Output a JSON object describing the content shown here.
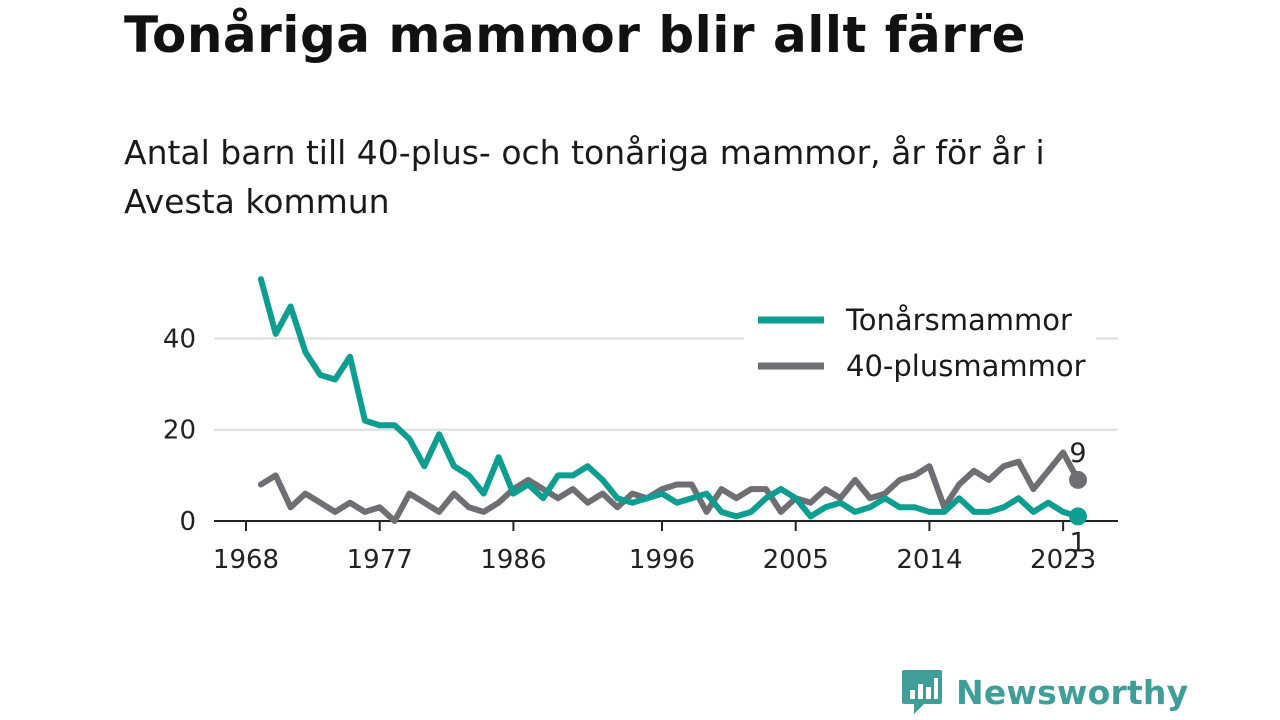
{
  "title": "Tonåriga mammor blir allt färre",
  "subtitle": "Antal barn till 40-plus- och tonåriga mammor, år för år i Avesta kommun",
  "brand": {
    "name": "Newsworthy",
    "icon": "newsworthy-logo-icon",
    "color": "#3f9e97"
  },
  "chart_data": {
    "type": "line",
    "xlim": [
      1968,
      2024
    ],
    "ylim": [
      0,
      55
    ],
    "x_ticks": [
      "1968",
      "1977",
      "1986",
      "1996",
      "2005",
      "2014",
      "2023"
    ],
    "y_ticks": [
      "0",
      "20",
      "40"
    ],
    "grid": true,
    "legend_position": "top-right",
    "x": [
      1969,
      1970,
      1971,
      1972,
      1973,
      1974,
      1975,
      1976,
      1977,
      1978,
      1979,
      1980,
      1981,
      1982,
      1983,
      1984,
      1985,
      1986,
      1987,
      1988,
      1989,
      1990,
      1991,
      1992,
      1993,
      1994,
      1995,
      1996,
      1997,
      1998,
      1999,
      2000,
      2001,
      2002,
      2003,
      2004,
      2005,
      2006,
      2007,
      2008,
      2009,
      2010,
      2011,
      2012,
      2013,
      2014,
      2015,
      2016,
      2017,
      2018,
      2019,
      2020,
      2021,
      2022,
      2023,
      2024
    ],
    "series": [
      {
        "name": "Tonårsmammor",
        "color": "#0d9e91",
        "values": [
          53,
          41,
          47,
          37,
          32,
          31,
          36,
          22,
          21,
          21,
          18,
          12,
          19,
          12,
          10,
          6,
          14,
          6,
          8,
          5,
          10,
          10,
          12,
          9,
          5,
          4,
          5,
          6,
          4,
          5,
          6,
          2,
          1,
          2,
          5,
          7,
          5,
          1,
          3,
          4,
          2,
          3,
          5,
          3,
          3,
          2,
          2,
          5,
          2,
          2,
          3,
          5,
          2,
          4,
          2,
          1
        ],
        "end_label": "1"
      },
      {
        "name": "40-plusmammor",
        "color": "#6e6e73",
        "values": [
          8,
          10,
          3,
          6,
          4,
          2,
          4,
          2,
          3,
          0,
          6,
          4,
          2,
          6,
          3,
          2,
          4,
          7,
          9,
          7,
          5,
          7,
          4,
          6,
          3,
          6,
          5,
          7,
          8,
          8,
          2,
          7,
          5,
          7,
          7,
          2,
          5,
          4,
          7,
          5,
          9,
          5,
          6,
          9,
          10,
          12,
          3,
          8,
          11,
          9,
          12,
          13,
          7,
          11,
          15,
          9
        ],
        "end_label": "9"
      }
    ]
  }
}
